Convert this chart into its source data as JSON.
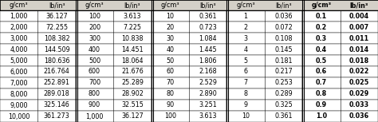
{
  "columns": [
    "g/cm³",
    "lb/in³"
  ],
  "col1": [
    [
      "1,000",
      "36.127"
    ],
    [
      "2,000",
      "72.255"
    ],
    [
      "3,000",
      "108.382"
    ],
    [
      "4,000",
      "144.509"
    ],
    [
      "5,000",
      "180.636"
    ],
    [
      "6,000",
      "216.764"
    ],
    [
      "7,000",
      "252.891"
    ],
    [
      "8,000",
      "289.018"
    ],
    [
      "9,000",
      "325.146"
    ],
    [
      "10,000",
      "361.273"
    ]
  ],
  "col2": [
    [
      "100",
      "3.613"
    ],
    [
      "200",
      "7.225"
    ],
    [
      "300",
      "10.838"
    ],
    [
      "400",
      "14.451"
    ],
    [
      "500",
      "18.064"
    ],
    [
      "600",
      "21.676"
    ],
    [
      "700",
      "25.289"
    ],
    [
      "800",
      "28.902"
    ],
    [
      "900",
      "32.515"
    ],
    [
      "1,000",
      "36.127"
    ]
  ],
  "col3": [
    [
      "10",
      "0.361"
    ],
    [
      "20",
      "0.723"
    ],
    [
      "30",
      "1.084"
    ],
    [
      "40",
      "1.445"
    ],
    [
      "50",
      "1.806"
    ],
    [
      "60",
      "2.168"
    ],
    [
      "70",
      "2.529"
    ],
    [
      "80",
      "2.890"
    ],
    [
      "90",
      "3.251"
    ],
    [
      "100",
      "3.613"
    ]
  ],
  "col4": [
    [
      "1",
      "0.036"
    ],
    [
      "2",
      "0.072"
    ],
    [
      "3",
      "0.108"
    ],
    [
      "4",
      "0.145"
    ],
    [
      "5",
      "0.181"
    ],
    [
      "6",
      "0.217"
    ],
    [
      "7",
      "0.253"
    ],
    [
      "8",
      "0.289"
    ],
    [
      "9",
      "0.325"
    ],
    [
      "10",
      "0.361"
    ]
  ],
  "col5": [
    [
      "0.1",
      "0.004"
    ],
    [
      "0.2",
      "0.007"
    ],
    [
      "0.3",
      "0.011"
    ],
    [
      "0.4",
      "0.014"
    ],
    [
      "0.5",
      "0.018"
    ],
    [
      "0.6",
      "0.022"
    ],
    [
      "0.7",
      "0.025"
    ],
    [
      "0.8",
      "0.029"
    ],
    [
      "0.9",
      "0.033"
    ],
    [
      "1.0",
      "0.036"
    ]
  ],
  "bg_color": "#ffffff",
  "header_bg": "#d4d0c8",
  "border_color": "#000000",
  "text_color": "#000000",
  "font_size": 5.8,
  "bold_last_col": true,
  "n_rows": 10,
  "n_groups": 5,
  "double_separator_groups": [
    1,
    2,
    3,
    4
  ]
}
